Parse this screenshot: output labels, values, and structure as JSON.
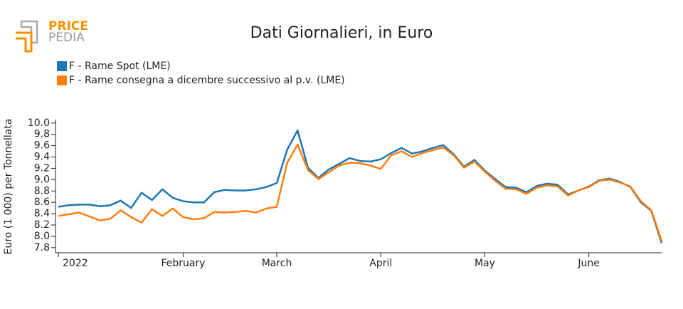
{
  "logo": {
    "line1": "PRICE",
    "line2": "PEDIA"
  },
  "chart_data": {
    "type": "line",
    "title": "Dati Giornalieri, in Euro",
    "y_label": "Euro (1 000) per Tonnellata",
    "categories": [
      "2022",
      null,
      null,
      null,
      null,
      null,
      null,
      null,
      null,
      null,
      null,
      null,
      "February",
      null,
      null,
      null,
      null,
      null,
      null,
      null,
      null,
      "March",
      null,
      null,
      null,
      null,
      null,
      null,
      null,
      null,
      null,
      "April",
      null,
      null,
      null,
      null,
      null,
      null,
      null,
      null,
      null,
      "May",
      null,
      null,
      null,
      null,
      null,
      null,
      null,
      null,
      null,
      "June",
      null,
      null,
      null,
      null,
      null,
      null,
      null
    ],
    "series": [
      {
        "name": "F - Rame Spot (LME)",
        "color": "#1f77b4",
        "values": [
          8.52,
          8.55,
          8.56,
          8.56,
          8.53,
          8.55,
          8.63,
          8.5,
          8.77,
          8.64,
          8.83,
          8.68,
          8.62,
          8.6,
          8.6,
          8.78,
          8.82,
          8.81,
          8.81,
          8.83,
          8.87,
          8.94,
          9.53,
          9.87,
          9.21,
          9.03,
          9.18,
          9.28,
          9.38,
          9.33,
          9.32,
          9.36,
          9.47,
          9.56,
          9.46,
          9.5,
          9.56,
          9.61,
          9.45,
          9.23,
          9.35,
          9.16,
          9.01,
          8.87,
          8.86,
          8.78,
          8.89,
          8.93,
          8.91,
          8.74,
          8.81,
          8.88,
          8.99,
          9.02,
          8.96,
          8.87,
          8.6,
          8.45,
          7.88
        ]
      },
      {
        "name": "F - Rame consegna a dicembre successivo al p.v. (LME)",
        "color": "#ff7f0e",
        "values": [
          8.36,
          8.39,
          8.42,
          8.35,
          8.28,
          8.31,
          8.46,
          8.34,
          8.24,
          8.48,
          8.36,
          8.49,
          8.34,
          8.3,
          8.32,
          8.43,
          8.42,
          8.43,
          8.45,
          8.42,
          8.49,
          8.52,
          9.3,
          9.62,
          9.17,
          9.01,
          9.13,
          9.25,
          9.3,
          9.29,
          9.25,
          9.19,
          9.43,
          9.5,
          9.4,
          9.47,
          9.52,
          9.57,
          9.43,
          9.21,
          9.32,
          9.14,
          8.98,
          8.84,
          8.83,
          8.75,
          8.86,
          8.9,
          8.88,
          8.72,
          8.81,
          8.87,
          8.98,
          9.0,
          8.95,
          8.88,
          8.62,
          8.46,
          7.92
        ]
      }
    ],
    "ylim": [
      7.71,
      10.06
    ],
    "yticks": [
      7.8,
      {
        "value": 8,
        "label": "8.0"
      },
      8.2,
      8.4,
      8.6,
      8.8,
      {
        "value": 9,
        "label": "9.0"
      },
      9.2,
      9.4,
      9.6,
      9.8,
      {
        "value": 10,
        "label": "10.0"
      }
    ]
  }
}
